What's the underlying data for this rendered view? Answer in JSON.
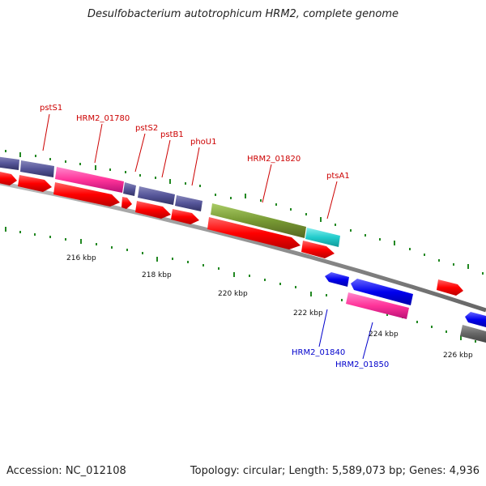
{
  "title": "Desulfobacterium autotrophicum HRM2, complete genome",
  "footer": {
    "accession": "Accession: NC_012108",
    "topology": "Topology: circular; Length: 5,589,073 bp; Genes: 4,936"
  },
  "scale_labels": [
    "216 kbp",
    "218 kbp",
    "220 kbp",
    "222 kbp",
    "224 kbp",
    "226 kbp"
  ],
  "gene_labels_forward": [
    "pstS1",
    "HRM2_01780",
    "pstS2",
    "pstB1",
    "phoU1",
    "HRM2_01820",
    "ptsA1"
  ],
  "gene_labels_reverse": [
    "HRM2_01840",
    "HRM2_01850"
  ],
  "colors": {
    "forward_label": "#cc0000",
    "reverse_label": "#0000cc",
    "cds": "#ff0000",
    "gene_purple": "#555599",
    "gene_pink": "#ff3399",
    "gene_green": "#779933",
    "gene_cyan": "#22cccc",
    "gene_blue": "#0000ee",
    "gene_gray": "#666666",
    "backbone": "#888888",
    "tick": "#228822"
  }
}
